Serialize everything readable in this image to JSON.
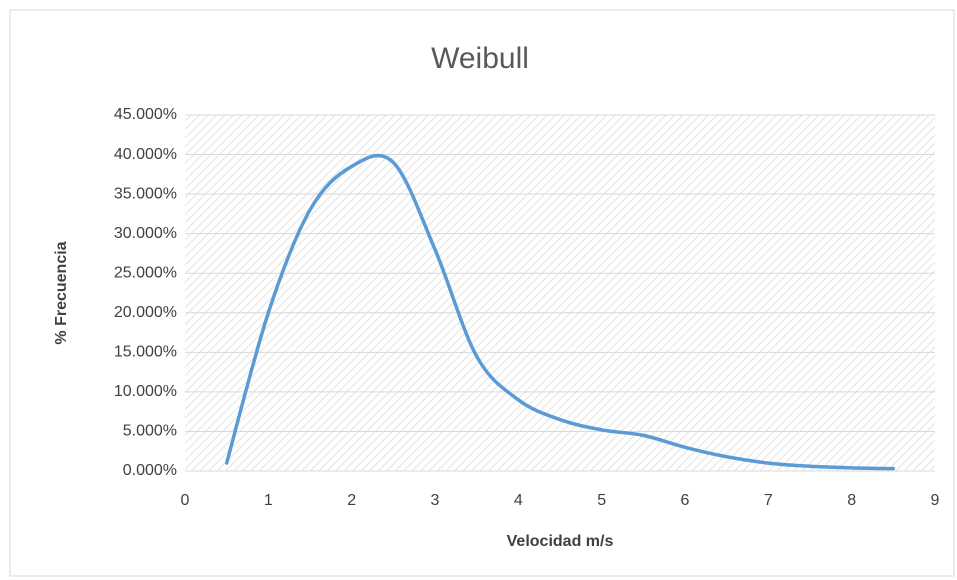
{
  "chart_data": {
    "type": "line",
    "title": "Weibull",
    "x_label": "Velocidad m/s",
    "y_label": "% Frecuencia",
    "x": [
      0.5,
      1,
      1.5,
      2,
      2.5,
      3,
      3.5,
      4,
      4.5,
      5,
      5.5,
      6,
      6.5,
      7,
      7.5,
      8,
      8.5
    ],
    "series": [
      {
        "color": "#5b9bd5",
        "values": [
          1,
          20,
          33,
          38.5,
          39,
          28,
          14.5,
          9,
          6.5,
          5.2,
          4.5,
          3,
          1.8,
          1.0,
          0.6,
          0.4,
          0.3
        ]
      }
    ],
    "xlim": [
      0,
      9
    ],
    "xticks": [
      0,
      1,
      2,
      3,
      4,
      5,
      6,
      7,
      8,
      9
    ],
    "ylim": [
      0,
      45
    ],
    "yticks": [
      {
        "value": 0,
        "label": "0.000%"
      },
      {
        "value": 5,
        "label": "5.000%"
      },
      {
        "value": 10,
        "label": "10.000%"
      },
      {
        "value": 15,
        "label": "15.000%"
      },
      {
        "value": 20,
        "label": "20.000%"
      },
      {
        "value": 25,
        "label": "25.000%"
      },
      {
        "value": 30,
        "label": "30.000%"
      },
      {
        "value": 35,
        "label": "35.000%"
      },
      {
        "value": 40,
        "label": "40.000%"
      },
      {
        "value": 45,
        "label": "45.000%"
      }
    ],
    "grid": true
  }
}
